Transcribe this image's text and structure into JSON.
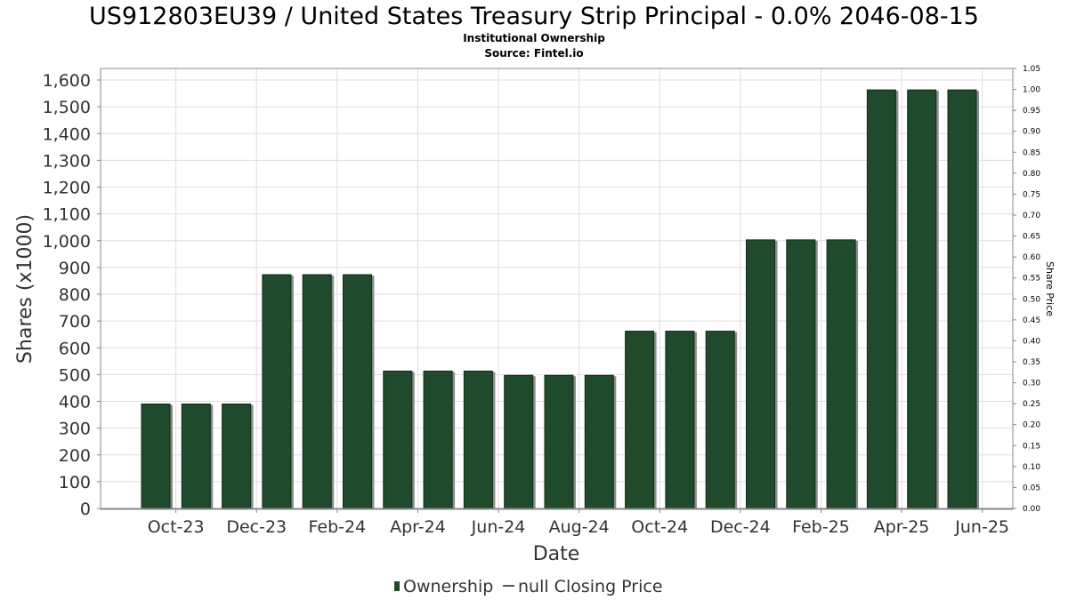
{
  "chart_data": {
    "type": "bar",
    "title": "US912803EU39 / United States Treasury Strip Principal - 0.0% 2046-08-15",
    "subtitle": "Institutional Ownership",
    "source": "Source: Fintel.io",
    "xlabel": "Date",
    "ylabel": "Shares (x1000)",
    "y2label": "Share Price",
    "ylim": [
      0,
      1650
    ],
    "y2lim": [
      0,
      1.05
    ],
    "grid": true,
    "legend_position": "bottom-center",
    "x_tick_labels": [
      "Oct-23",
      "Dec-23",
      "Feb-24",
      "Apr-24",
      "Jun-24",
      "Aug-24",
      "Oct-24",
      "Dec-24",
      "Feb-25",
      "Apr-25",
      "Jun-25"
    ],
    "y_ticks": [
      0,
      100,
      200,
      300,
      400,
      500,
      600,
      700,
      800,
      900,
      1000,
      1100,
      1200,
      1300,
      1400,
      1500,
      1600
    ],
    "y_tick_labels": [
      "0",
      "100",
      "200",
      "300",
      "400",
      "500",
      "600",
      "700",
      "800",
      "900",
      "1,000",
      "1,100",
      "1,200",
      "1,300",
      "1,400",
      "1,500",
      "1,600"
    ],
    "y2_tick_labels": [
      "0.00",
      "0.05",
      "0.10",
      "0.15",
      "0.20",
      "0.25",
      "0.30",
      "0.35",
      "0.40",
      "0.45",
      "0.50",
      "0.55",
      "0.60",
      "0.65",
      "0.70",
      "0.75",
      "0.80",
      "0.85",
      "0.90",
      "0.95",
      "1.00",
      "1.05"
    ],
    "series": [
      {
        "name": "Ownership",
        "type": "bar",
        "color": "#1f4a2c",
        "values": [
          390,
          390,
          390,
          873,
          873,
          873,
          513,
          513,
          513,
          497,
          497,
          497,
          662,
          662,
          662,
          1003,
          1003,
          1003,
          1563,
          1563,
          1563
        ]
      },
      {
        "name": "null Closing Price",
        "type": "line",
        "color": "#555555",
        "values": []
      }
    ]
  }
}
